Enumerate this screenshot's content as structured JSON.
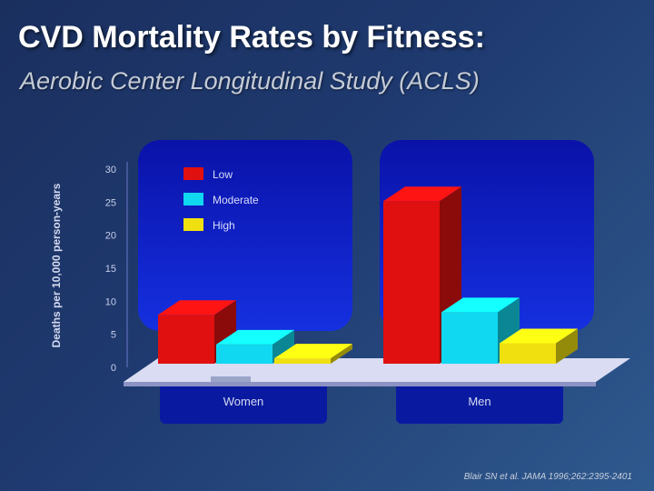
{
  "title": "CVD Mortality Rates by Fitness:",
  "subtitle": "Aerobic Center Longitudinal Study (ACLS)",
  "citation": "Blair SN et al. JAMA 1996;262:2395-2401",
  "colors": {
    "background": "#1f3a70",
    "plot_panel": "#0a1db8",
    "floor": "#d9dcf2",
    "low": "#e01010",
    "moderate": "#10d8f0",
    "high": "#f0e010"
  },
  "chart_data": {
    "type": "bar",
    "title": "",
    "xlabel": "",
    "ylabel": "Deaths per 10,000 person-years",
    "ylim": [
      0,
      30
    ],
    "yticks": [
      "0",
      "5",
      "10",
      "15",
      "20",
      "25",
      "30"
    ],
    "categories": [
      "Women",
      "Men"
    ],
    "series": [
      {
        "name": "Low",
        "values": [
          7.4,
          24.6
        ],
        "color": "#e01010"
      },
      {
        "name": "Moderate",
        "values": [
          2.9,
          7.8
        ],
        "color": "#10d8f0"
      },
      {
        "name": "High",
        "values": [
          0.8,
          3.1
        ],
        "color": "#f0e010"
      }
    ],
    "legend_position": "top-left",
    "grid": false
  }
}
